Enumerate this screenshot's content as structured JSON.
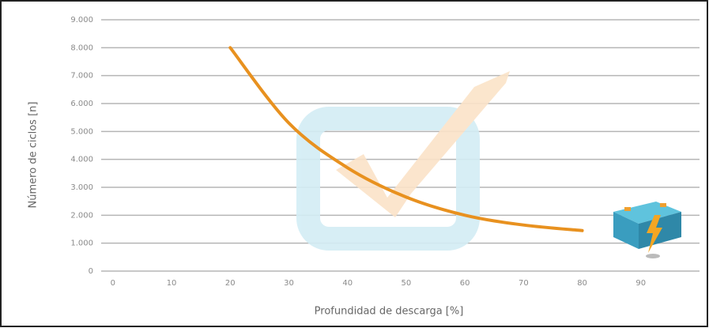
{
  "chart_data": {
    "type": "line",
    "x_label": "Profundidad de descarga [%]",
    "y_label": "Número de ciclos [n]",
    "x": [
      20,
      30,
      40,
      50,
      60,
      70,
      80
    ],
    "series": [
      {
        "name": "Ciclos",
        "color": "#e8911f",
        "values": [
          8000,
          5300,
          3700,
          2650,
          2000,
          1650,
          1450
        ]
      }
    ],
    "xlim": [
      -2,
      100
    ],
    "xticks": [
      0,
      10,
      20,
      30,
      40,
      50,
      60,
      70,
      80,
      90
    ],
    "ylim": [
      0,
      9000
    ],
    "yticks": [
      {
        "value": 0,
        "label": "0"
      },
      {
        "value": 1000,
        "label": "1.000"
      },
      {
        "value": 2000,
        "label": "2.000"
      },
      {
        "value": 3000,
        "label": "3.000"
      },
      {
        "value": 4000,
        "label": "4.000"
      },
      {
        "value": 5000,
        "label": "5.000"
      },
      {
        "value": 6000,
        "label": "6.000"
      },
      {
        "value": 7000,
        "label": "7.000"
      },
      {
        "value": 8000,
        "label": "8.000"
      },
      {
        "value": 9000,
        "label": "9.000"
      }
    ],
    "grid": true
  }
}
